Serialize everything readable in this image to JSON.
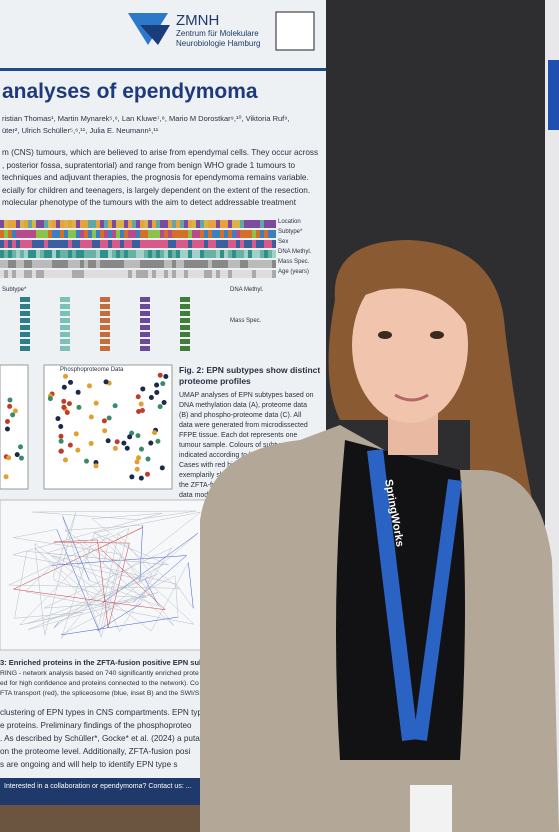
{
  "poster": {
    "logo": {
      "name": "ZMNH",
      "lines": [
        "Zentrum für Molekulare",
        "Neurobiologie Hamburg"
      ]
    },
    "title": "analyses of ependymoma",
    "authors": [
      "ristian Thomas¹, Martin Mynarek⁵,⁶, Lan Kluwe⁷,⁸, Mario M Dorostkar⁹,¹⁰, Viktoria Ruf⁹,",
      "üter², Ulrich Schüller⁵,⁶,¹¹, Julia E. Neumann¹,¹¹"
    ],
    "intro": [
      "m (CNS) tumours, which are believed to arise from ependymal cells. They occur across",
      ", posterior fossa, supratentorial) and range from benign WHO grade 1 tumours to",
      "techniques and adjuvant therapies, the prognosis for ependymoma remains variable.",
      "ecially for children and teenagers, is largely dependent on the extent of the resection.",
      "molecular phenotype of the tumours with the aim to detect addressable treatment"
    ],
    "heatmap_labels": [
      "Location",
      "Subtype*",
      "Sex",
      "DNA Methyl.",
      "Mass Spec.",
      "Age (years)"
    ],
    "legend": {
      "subtype": "Subtype*",
      "dna": "DNA Methyl.",
      "mass": "Mass Spec."
    },
    "fig2": {
      "title": [
        "Fig. 2: EPN subtypes show distinct",
        "proteome profiles"
      ],
      "text": [
        "UMAP analyses of EPN subtypes based on",
        "DNA methylation data (A), proteome data",
        "(B) and phospho-proteome data (C). All",
        "data were generated from microdissected",
        "FFPE tissue. Each dot represents one",
        "tumour sample. Colours of subtypes are",
        "indicated according to legend in Fig. 1.",
        "Cases with red highlighted ...",
        "exemplarily show the dist...",
        "the ZFTA-fusion positive EP...",
        "data modalities."
      ]
    },
    "panel_label": "Phosphoproteome Data",
    "fig3": {
      "title": "3: Enriched proteins in the ZFTA-fusion positive EPN subtype",
      "text": [
        "RING - network analysis based on 740 significantly enriched prote",
        "ed for high confidence and proteins connected to the network). Co",
        "FTA transport (red), the spliceosome (blue, inset B) and the SWI/SNF"
      ]
    },
    "bottom": [
      "clustering of EPN types in CNS compartments. EPN typ",
      "e proteins. Preliminary findings of the phosphoproteo",
      ". As described by Schüller*, Gocke* et al. (2024) a puta",
      "on the proteome level. Additionally, ZFTA-fusion posi",
      "s are ongoing and will help to identify EPN type s"
    ],
    "footer": "Interested in a collaboration or ependymoma? Contact us: ..."
  },
  "lanyard": "SpringWorks"
}
